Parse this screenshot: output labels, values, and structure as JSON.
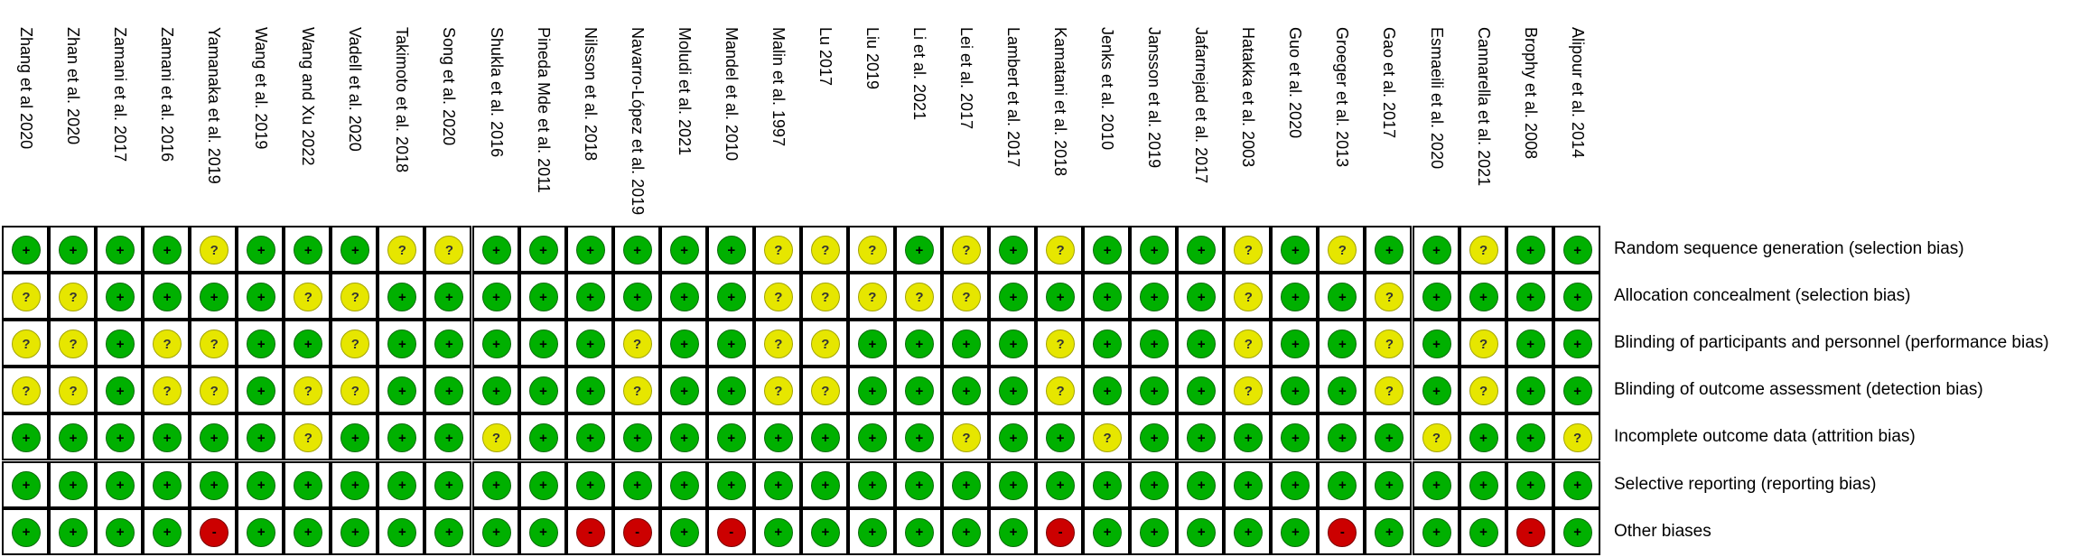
{
  "studies": [
    "Zhang et al 2020",
    "Zhan et al. 2020",
    "Zamani et al. 2017",
    "Zamani et al. 2016",
    "Yamanaka et al. 2019",
    "Wang et al. 2019",
    "Wang and Xu 2022",
    "Vadell et al. 2020",
    "Takimoto et al. 2018",
    "Song et al. 2020",
    "Shukla et al. 2016",
    "Pineda Mde et al. 2011",
    "Nilsson et al. 2018",
    "Navarro-López et al. 2019",
    "Moludi et al. 2021",
    "Mandel et al. 2010",
    "Malin et al. 1997",
    "Lu 2017",
    "Liu 2019",
    "Li et al. 2021",
    "Lei et al. 2017",
    "Lambert et al. 2017",
    "Kamatani et al. 2018",
    "Jenks et al. 2010",
    "Jansson et al. 2019",
    "Jafarnejad et al. 2017",
    "Hatakka et al. 2003",
    "Guo et al. 2020",
    "Groeger et al. 2013",
    "Gao et al. 2017",
    "Esmaeili et al. 2020",
    "Cannarella et al. 2021",
    "Brophy et al. 2008",
    "Alipour et al. 2014"
  ],
  "domains": [
    "Random sequence generation (selection bias)",
    "Allocation concealment (selection bias)",
    "Blinding of participants and personnel (performance bias)",
    "Blinding of outcome assessment (detection bias)",
    "Incomplete outcome data (attrition bias)",
    "Selective reporting (reporting bias)",
    "Other biases"
  ],
  "judgement_symbols": {
    "low": "+",
    "unclear": "?",
    "high": "-"
  },
  "judgement_colors": {
    "low": "#00b000",
    "unclear": "#e6e600",
    "high": "#cc0000"
  },
  "ratings": [
    [
      "low",
      "low",
      "low",
      "low",
      "unclear",
      "low",
      "low",
      "low",
      "unclear",
      "unclear",
      "low",
      "low",
      "low",
      "low",
      "low",
      "low",
      "unclear",
      "unclear",
      "unclear",
      "low",
      "unclear",
      "low",
      "unclear",
      "low",
      "low",
      "low",
      "unclear",
      "low",
      "unclear",
      "low",
      "low",
      "unclear",
      "low",
      "low"
    ],
    [
      "unclear",
      "unclear",
      "low",
      "low",
      "low",
      "low",
      "unclear",
      "unclear",
      "low",
      "low",
      "low",
      "low",
      "low",
      "low",
      "low",
      "low",
      "unclear",
      "unclear",
      "unclear",
      "unclear",
      "unclear",
      "low",
      "low",
      "low",
      "low",
      "low",
      "unclear",
      "low",
      "low",
      "unclear",
      "low",
      "low",
      "low",
      "low"
    ],
    [
      "unclear",
      "unclear",
      "low",
      "unclear",
      "unclear",
      "low",
      "low",
      "unclear",
      "low",
      "low",
      "low",
      "low",
      "low",
      "unclear",
      "low",
      "low",
      "unclear",
      "unclear",
      "low",
      "low",
      "low",
      "low",
      "unclear",
      "low",
      "low",
      "low",
      "unclear",
      "low",
      "low",
      "unclear",
      "low",
      "unclear",
      "low",
      "low"
    ],
    [
      "unclear",
      "unclear",
      "low",
      "unclear",
      "unclear",
      "low",
      "unclear",
      "unclear",
      "low",
      "low",
      "low",
      "low",
      "low",
      "unclear",
      "low",
      "low",
      "unclear",
      "unclear",
      "low",
      "low",
      "low",
      "low",
      "unclear",
      "low",
      "low",
      "low",
      "unclear",
      "low",
      "low",
      "unclear",
      "low",
      "unclear",
      "low",
      "low"
    ],
    [
      "low",
      "low",
      "low",
      "low",
      "low",
      "low",
      "unclear",
      "low",
      "low",
      "low",
      "unclear",
      "low",
      "low",
      "low",
      "low",
      "low",
      "low",
      "low",
      "low",
      "low",
      "unclear",
      "low",
      "low",
      "unclear",
      "low",
      "low",
      "low",
      "low",
      "low",
      "low",
      "unclear",
      "low",
      "low",
      "unclear"
    ],
    [
      "low",
      "low",
      "low",
      "low",
      "low",
      "low",
      "low",
      "low",
      "low",
      "low",
      "low",
      "low",
      "low",
      "low",
      "low",
      "low",
      "low",
      "low",
      "low",
      "low",
      "low",
      "low",
      "low",
      "low",
      "low",
      "low",
      "low",
      "low",
      "low",
      "low",
      "low",
      "low",
      "low",
      "low"
    ],
    [
      "low",
      "low",
      "low",
      "low",
      "high",
      "low",
      "low",
      "low",
      "low",
      "low",
      "low",
      "low",
      "high",
      "high",
      "low",
      "high",
      "low",
      "low",
      "low",
      "low",
      "low",
      "low",
      "high",
      "low",
      "low",
      "low",
      "low",
      "low",
      "high",
      "low",
      "low",
      "low",
      "high",
      "low"
    ]
  ]
}
